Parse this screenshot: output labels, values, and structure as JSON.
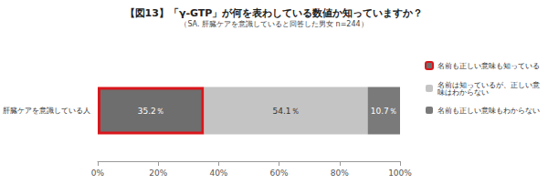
{
  "chart_data": {
    "type": "bar",
    "title": "【図13】「γ-GTP」が何を表わしている数値か知っていますか？",
    "subtitle": "（SA. 肝臓ケアを意識していると回答した男女 n=244）",
    "orientation": "horizontal",
    "stacked": true,
    "data_labels": true,
    "grid": false,
    "legend": "right",
    "categories": [
      "肝臓ケアを意識している人"
    ],
    "series": [
      {
        "name": "名前も正しい意味も知っている",
        "color": "#6e6e6e",
        "values": [
          35.2
        ],
        "value_labels": [
          "35.2％"
        ]
      },
      {
        "name": "名前は知っているが、正しい意味はわからない",
        "color": "#c4c4c4",
        "values": [
          54.1
        ],
        "value_labels": [
          "54.1％"
        ]
      },
      {
        "name": "名前も正しい意味もわからない",
        "color": "#7a7a7a",
        "values": [
          10.7
        ],
        "value_labels": [
          "10.7％"
        ]
      }
    ],
    "xlim": [
      0,
      100
    ],
    "xticks": [
      {
        "value": 0,
        "label": "0%"
      },
      {
        "value": 20,
        "label": "20%"
      },
      {
        "value": 40,
        "label": "40%"
      },
      {
        "value": 60,
        "label": "60%"
      },
      {
        "value": 80,
        "label": "80%"
      },
      {
        "value": 100,
        "label": "100%"
      }
    ]
  }
}
